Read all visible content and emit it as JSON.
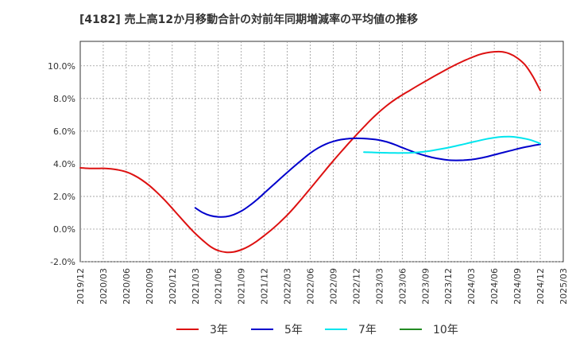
{
  "chart_data": {
    "type": "line",
    "title": "[4182]  売上高12か月移動合計の対前年同期増減率の平均値の推移",
    "xlabel": "",
    "ylabel": "",
    "x_ticks": [
      "2019/12",
      "2020/03",
      "2020/06",
      "2020/09",
      "2020/12",
      "2021/03",
      "2021/06",
      "2021/09",
      "2021/12",
      "2022/03",
      "2022/06",
      "2022/09",
      "2022/12",
      "2023/03",
      "2023/06",
      "2023/09",
      "2023/12",
      "2024/03",
      "2024/06",
      "2024/09",
      "2024/12",
      "2025/03"
    ],
    "y_ticks": [
      "-2.0%",
      "0.0%",
      "2.0%",
      "4.0%",
      "6.0%",
      "8.0%",
      "10.0%"
    ],
    "ylim": [
      -2.0,
      11.5
    ],
    "grid": true,
    "legend_position": "bottom",
    "series": [
      {
        "name": "3年",
        "color": "#dd1111",
        "points": [
          [
            "2019/12",
            3.75
          ],
          [
            "2020/01",
            3.72
          ],
          [
            "2020/02",
            3.71
          ],
          [
            "2020/03",
            3.72
          ],
          [
            "2020/04",
            3.69
          ],
          [
            "2020/05",
            3.62
          ],
          [
            "2020/06",
            3.5
          ],
          [
            "2020/07",
            3.3
          ],
          [
            "2020/08",
            3.02
          ],
          [
            "2020/09",
            2.67
          ],
          [
            "2020/10",
            2.25
          ],
          [
            "2020/11",
            1.78
          ],
          [
            "2020/12",
            1.27
          ],
          [
            "2021/01",
            0.74
          ],
          [
            "2021/02",
            0.22
          ],
          [
            "2021/03",
            -0.27
          ],
          [
            "2021/04",
            -0.7
          ],
          [
            "2021/05",
            -1.08
          ],
          [
            "2021/06",
            -1.32
          ],
          [
            "2021/07",
            -1.42
          ],
          [
            "2021/08",
            -1.4
          ],
          [
            "2021/09",
            -1.27
          ],
          [
            "2021/10",
            -1.05
          ],
          [
            "2021/11",
            -0.75
          ],
          [
            "2021/12",
            -0.4
          ],
          [
            "2022/01",
            -0.02
          ],
          [
            "2022/02",
            0.4
          ],
          [
            "2022/03",
            0.86
          ],
          [
            "2022/04",
            1.37
          ],
          [
            "2022/05",
            1.92
          ],
          [
            "2022/06",
            2.48
          ],
          [
            "2022/07",
            3.05
          ],
          [
            "2022/08",
            3.62
          ],
          [
            "2022/09",
            4.18
          ],
          [
            "2022/10",
            4.72
          ],
          [
            "2022/11",
            5.25
          ],
          [
            "2022/12",
            5.76
          ],
          [
            "2023/01",
            6.26
          ],
          [
            "2023/02",
            6.74
          ],
          [
            "2023/03",
            7.18
          ],
          [
            "2023/04",
            7.57
          ],
          [
            "2023/05",
            7.92
          ],
          [
            "2023/06",
            8.22
          ],
          [
            "2023/07",
            8.5
          ],
          [
            "2023/08",
            8.78
          ],
          [
            "2023/09",
            9.05
          ],
          [
            "2023/10",
            9.32
          ],
          [
            "2023/11",
            9.58
          ],
          [
            "2023/12",
            9.84
          ],
          [
            "2024/01",
            10.08
          ],
          [
            "2024/02",
            10.3
          ],
          [
            "2024/03",
            10.5
          ],
          [
            "2024/04",
            10.68
          ],
          [
            "2024/05",
            10.8
          ],
          [
            "2024/06",
            10.86
          ],
          [
            "2024/07",
            10.86
          ],
          [
            "2024/08",
            10.74
          ],
          [
            "2024/09",
            10.48
          ],
          [
            "2024/10",
            10.07
          ],
          [
            "2024/11",
            9.38
          ],
          [
            "2024/12",
            8.5
          ]
        ]
      },
      {
        "name": "5年",
        "color": "#0000cc",
        "points": [
          [
            "2021/03",
            1.3
          ],
          [
            "2021/04",
            1.0
          ],
          [
            "2021/05",
            0.82
          ],
          [
            "2021/06",
            0.75
          ],
          [
            "2021/07",
            0.76
          ],
          [
            "2021/08",
            0.88
          ],
          [
            "2021/09",
            1.1
          ],
          [
            "2021/10",
            1.41
          ],
          [
            "2021/11",
            1.78
          ],
          [
            "2021/12",
            2.2
          ],
          [
            "2022/01",
            2.63
          ],
          [
            "2022/02",
            3.05
          ],
          [
            "2022/03",
            3.47
          ],
          [
            "2022/04",
            3.88
          ],
          [
            "2022/05",
            4.27
          ],
          [
            "2022/06",
            4.65
          ],
          [
            "2022/07",
            4.96
          ],
          [
            "2022/08",
            5.2
          ],
          [
            "2022/09",
            5.37
          ],
          [
            "2022/10",
            5.48
          ],
          [
            "2022/11",
            5.54
          ],
          [
            "2022/12",
            5.56
          ],
          [
            "2023/01",
            5.55
          ],
          [
            "2023/02",
            5.51
          ],
          [
            "2023/03",
            5.45
          ],
          [
            "2023/04",
            5.34
          ],
          [
            "2023/05",
            5.18
          ],
          [
            "2023/06",
            4.99
          ],
          [
            "2023/07",
            4.81
          ],
          [
            "2023/08",
            4.64
          ],
          [
            "2023/09",
            4.5
          ],
          [
            "2023/10",
            4.38
          ],
          [
            "2023/11",
            4.29
          ],
          [
            "2023/12",
            4.23
          ],
          [
            "2024/01",
            4.21
          ],
          [
            "2024/02",
            4.22
          ],
          [
            "2024/03",
            4.26
          ],
          [
            "2024/04",
            4.33
          ],
          [
            "2024/05",
            4.43
          ],
          [
            "2024/06",
            4.55
          ],
          [
            "2024/07",
            4.67
          ],
          [
            "2024/08",
            4.79
          ],
          [
            "2024/09",
            4.91
          ],
          [
            "2024/10",
            5.02
          ],
          [
            "2024/11",
            5.11
          ],
          [
            "2024/12",
            5.19
          ]
        ]
      },
      {
        "name": "7年",
        "color": "#00e5ee",
        "points": [
          [
            "2023/01",
            4.71
          ],
          [
            "2023/02",
            4.7
          ],
          [
            "2023/03",
            4.68
          ],
          [
            "2023/04",
            4.67
          ],
          [
            "2023/05",
            4.66
          ],
          [
            "2023/06",
            4.66
          ],
          [
            "2023/07",
            4.67
          ],
          [
            "2023/08",
            4.7
          ],
          [
            "2023/09",
            4.75
          ],
          [
            "2023/10",
            4.82
          ],
          [
            "2023/11",
            4.9
          ],
          [
            "2023/12",
            4.99
          ],
          [
            "2024/01",
            5.09
          ],
          [
            "2024/02",
            5.2
          ],
          [
            "2024/03",
            5.31
          ],
          [
            "2024/04",
            5.42
          ],
          [
            "2024/05",
            5.52
          ],
          [
            "2024/06",
            5.6
          ],
          [
            "2024/07",
            5.65
          ],
          [
            "2024/08",
            5.66
          ],
          [
            "2024/09",
            5.62
          ],
          [
            "2024/10",
            5.54
          ],
          [
            "2024/11",
            5.42
          ],
          [
            "2024/12",
            5.24
          ]
        ]
      },
      {
        "name": "10年",
        "color": "#228b22",
        "points": []
      }
    ]
  }
}
